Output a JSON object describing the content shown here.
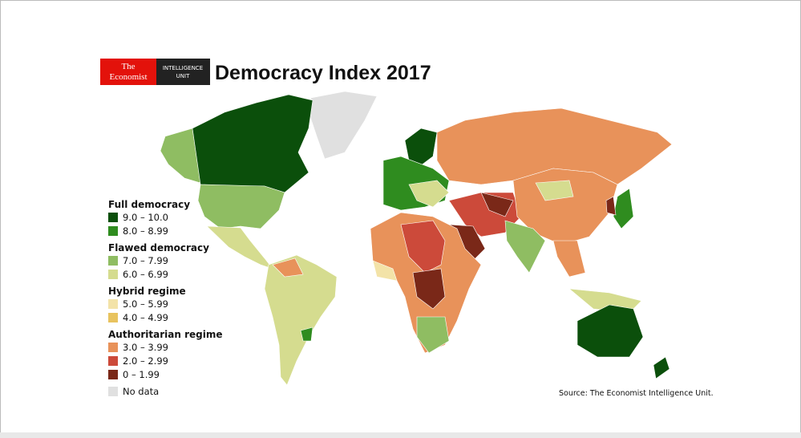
{
  "header": {
    "logo_top": "The",
    "logo_bottom": "Economist",
    "unit_top": "INTELLIGENCE",
    "unit_bottom": "UNIT",
    "title": "Democracy Index 2017"
  },
  "legend": {
    "groups": [
      {
        "title": "Full democracy",
        "items": [
          {
            "label": "9.0 – 10.0",
            "color": "#0b4f0b"
          },
          {
            "label": "8.0 – 8.99",
            "color": "#2f8c1f"
          }
        ]
      },
      {
        "title": "Flawed democracy",
        "items": [
          {
            "label": "7.0 – 7.99",
            "color": "#8fbd62"
          },
          {
            "label": "6.0 – 6.99",
            "color": "#d5dc8f"
          }
        ]
      },
      {
        "title": "Hybrid regime",
        "items": [
          {
            "label": "5.0 – 5.99",
            "color": "#f3e3a8"
          },
          {
            "label": "4.0 – 4.99",
            "color": "#e8c35f"
          }
        ]
      },
      {
        "title": "Authoritarian regime",
        "items": [
          {
            "label": "3.0 – 3.99",
            "color": "#e8925a"
          },
          {
            "label": "2.0 – 2.99",
            "color": "#cc4a3a"
          },
          {
            "label": "0 – 1.99",
            "color": "#7a2818"
          }
        ]
      }
    ],
    "no_data": {
      "label": "No data",
      "color": "#e0e0e0"
    }
  },
  "source": "Source: The Economist Intelligence Unit."
}
